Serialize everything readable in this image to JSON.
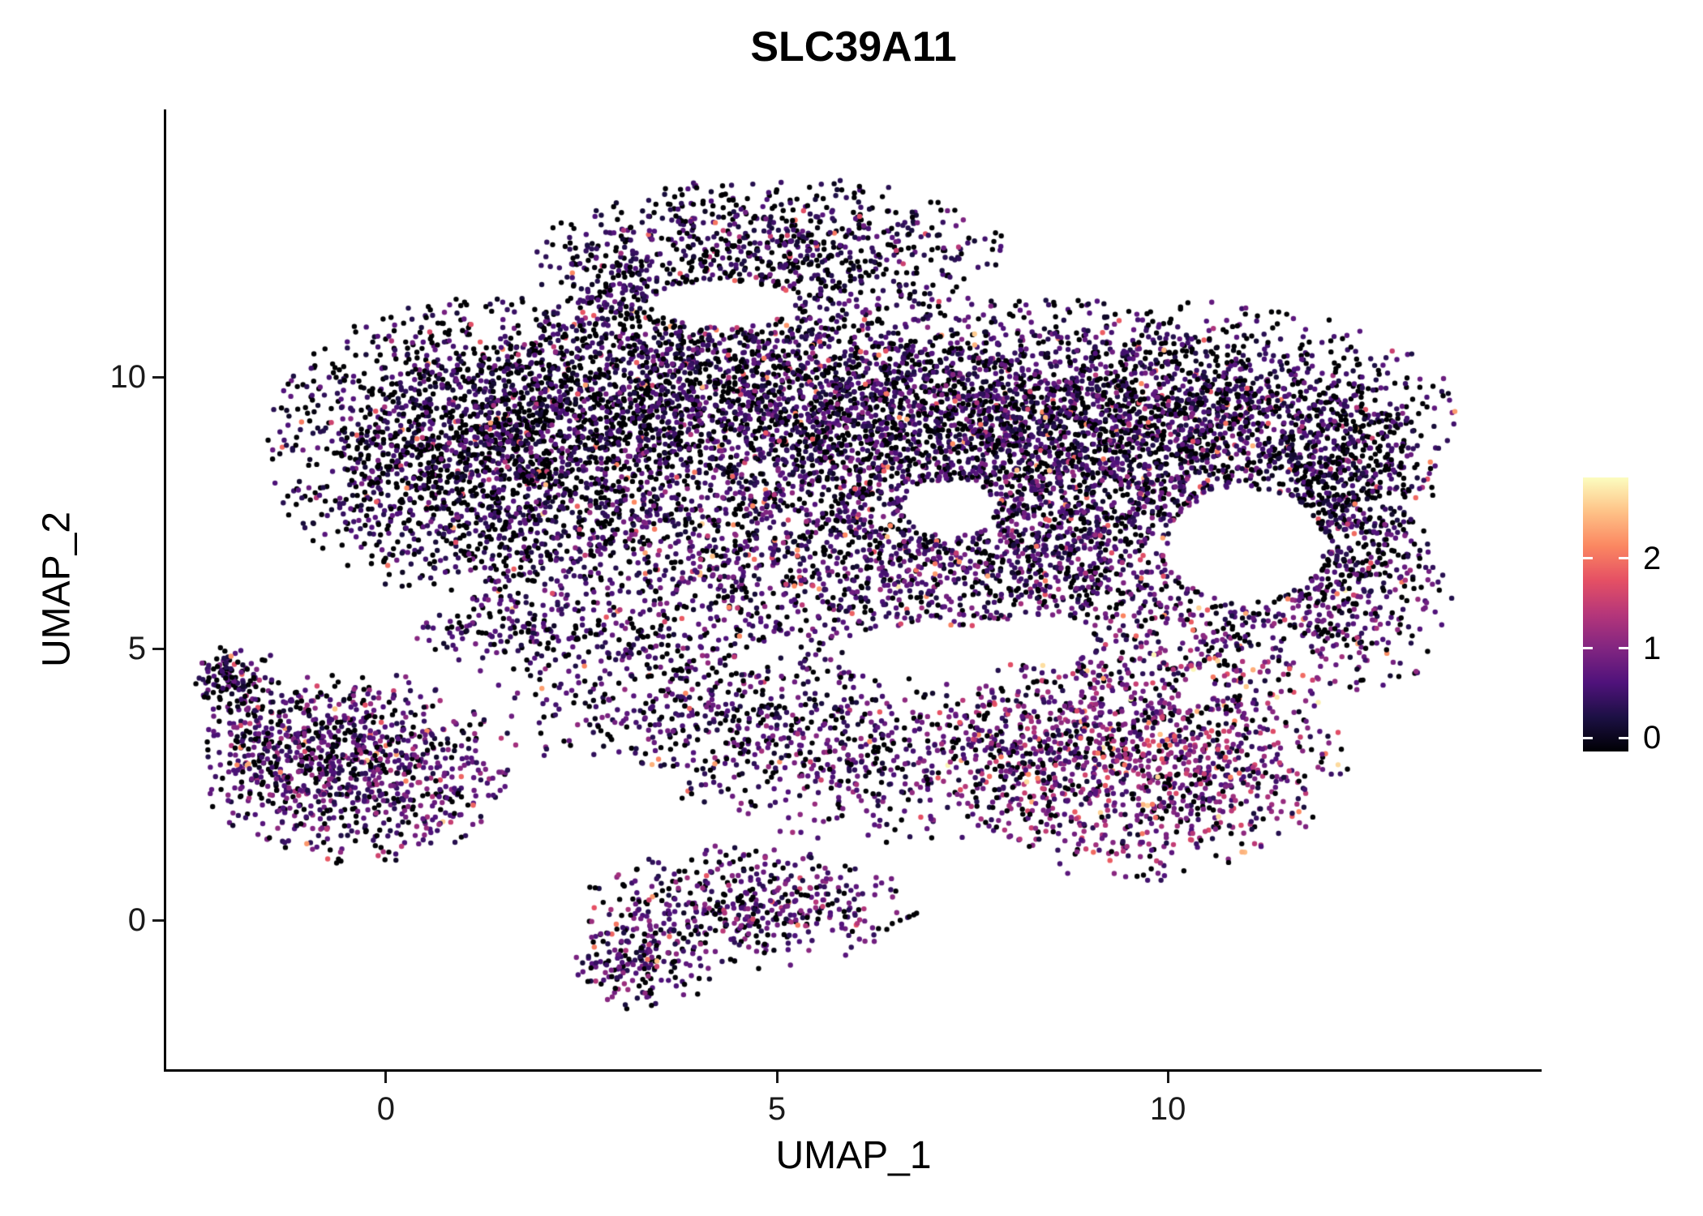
{
  "chart_data": {
    "type": "scatter",
    "title": "SLC39A11",
    "xlabel": "UMAP_1",
    "ylabel": "UMAP_2",
    "xlim": [
      -2.81,
      14.77
    ],
    "ylim": [
      -2.76,
      14.93
    ],
    "x_ticks": [
      0,
      5,
      10
    ],
    "y_ticks": [
      0,
      5,
      10
    ],
    "grid": false,
    "legend_position": "right",
    "colorbar": {
      "ticks": [
        0,
        1,
        2
      ],
      "value_range": [
        -0.15,
        2.9
      ],
      "colors": [
        "#000004",
        "#1c1044",
        "#4f127b",
        "#812581",
        "#b5367a",
        "#e55064",
        "#fb8761",
        "#fec287",
        "#fcfdbf"
      ]
    },
    "clusters": [
      {
        "cx": 1.3,
        "cy": 8.7,
        "sx": 1.35,
        "sy": 1.35,
        "n": 2500,
        "p0": 0.45,
        "vscale": 0.75
      },
      {
        "cx": 4.6,
        "cy": 9.6,
        "sx": 1.7,
        "sy": 1.15,
        "n": 2200,
        "p0": 0.4,
        "vscale": 0.8
      },
      {
        "cx": 7.7,
        "cy": 8.9,
        "sx": 1.7,
        "sy": 1.3,
        "n": 2500,
        "p0": 0.34,
        "vscale": 0.85
      },
      {
        "cx": 10.6,
        "cy": 9.2,
        "sx": 1.5,
        "sy": 1.05,
        "n": 1700,
        "p0": 0.42,
        "vscale": 0.8
      },
      {
        "cx": 12.3,
        "cy": 7.7,
        "sx": 0.55,
        "sy": 1.0,
        "n": 600,
        "p0": 0.45,
        "vscale": 0.75
      },
      {
        "cx": 5.1,
        "cy": 12.4,
        "sx": 1.35,
        "sy": 0.62,
        "n": 800,
        "p0": 0.45,
        "vscale": 0.7
      },
      {
        "cx": 2.7,
        "cy": 12.0,
        "sx": 0.4,
        "sy": 0.5,
        "n": 110,
        "p0": 0.45,
        "vscale": 0.7
      },
      {
        "cx": 3.4,
        "cy": 11.2,
        "sx": 0.8,
        "sy": 0.55,
        "n": 200,
        "p0": 0.5,
        "vscale": 0.7
      },
      {
        "cx": 5.3,
        "cy": 6.4,
        "sx": 2.0,
        "sy": 0.95,
        "n": 1400,
        "p0": 0.3,
        "vscale": 0.9
      },
      {
        "cx": 9.1,
        "cy": 6.4,
        "sx": 1.3,
        "sy": 1.0,
        "n": 850,
        "p0": 0.3,
        "vscale": 0.95
      },
      {
        "cx": 11.9,
        "cy": 5.8,
        "sx": 0.95,
        "sy": 0.8,
        "n": 500,
        "p0": 0.28,
        "vscale": 1.05
      },
      {
        "cx": 9.7,
        "cy": 3.1,
        "sx": 1.25,
        "sy": 1.15,
        "n": 1500,
        "p0": 0.2,
        "vscale": 1.3
      },
      {
        "cx": 6.4,
        "cy": 3.0,
        "sx": 1.5,
        "sy": 0.75,
        "n": 600,
        "p0": 0.3,
        "vscale": 1.0
      },
      {
        "cx": 3.9,
        "cy": 3.9,
        "sx": 1.3,
        "sy": 0.6,
        "n": 400,
        "p0": 0.35,
        "vscale": 0.9
      },
      {
        "cx": 2.2,
        "cy": 5.3,
        "sx": 0.9,
        "sy": 0.5,
        "n": 240,
        "p0": 0.35,
        "vscale": 0.8
      },
      {
        "cx": -0.4,
        "cy": 2.8,
        "sx": 0.95,
        "sy": 0.85,
        "n": 1050,
        "p0": 0.28,
        "vscale": 1.0
      },
      {
        "cx": -1.6,
        "cy": 3.5,
        "sx": 0.35,
        "sy": 0.75,
        "n": 150,
        "p0": 0.35,
        "vscale": 0.9
      },
      {
        "cx": -2.0,
        "cy": 4.45,
        "sx": 0.22,
        "sy": 0.3,
        "n": 120,
        "p0": 0.45,
        "vscale": 0.8
      },
      {
        "cx": 4.6,
        "cy": 0.25,
        "sx": 1.05,
        "sy": 0.55,
        "n": 520,
        "p0": 0.3,
        "vscale": 1.0
      },
      {
        "cx": 3.3,
        "cy": -0.75,
        "sx": 0.45,
        "sy": 0.45,
        "n": 200,
        "p0": 0.32,
        "vscale": 0.95
      }
    ],
    "holes": [
      {
        "cx": 11.0,
        "cy": 6.9,
        "rx": 1.0,
        "ry": 1.05
      },
      {
        "cx": 6.9,
        "cy": 4.95,
        "rx": 1.05,
        "ry": 0.5
      },
      {
        "cx": 8.3,
        "cy": 5.15,
        "rx": 0.75,
        "ry": 0.45
      },
      {
        "cx": 4.3,
        "cy": 11.35,
        "rx": 0.9,
        "ry": 0.42
      },
      {
        "cx": 7.2,
        "cy": 7.6,
        "rx": 0.6,
        "ry": 0.5
      }
    ]
  }
}
